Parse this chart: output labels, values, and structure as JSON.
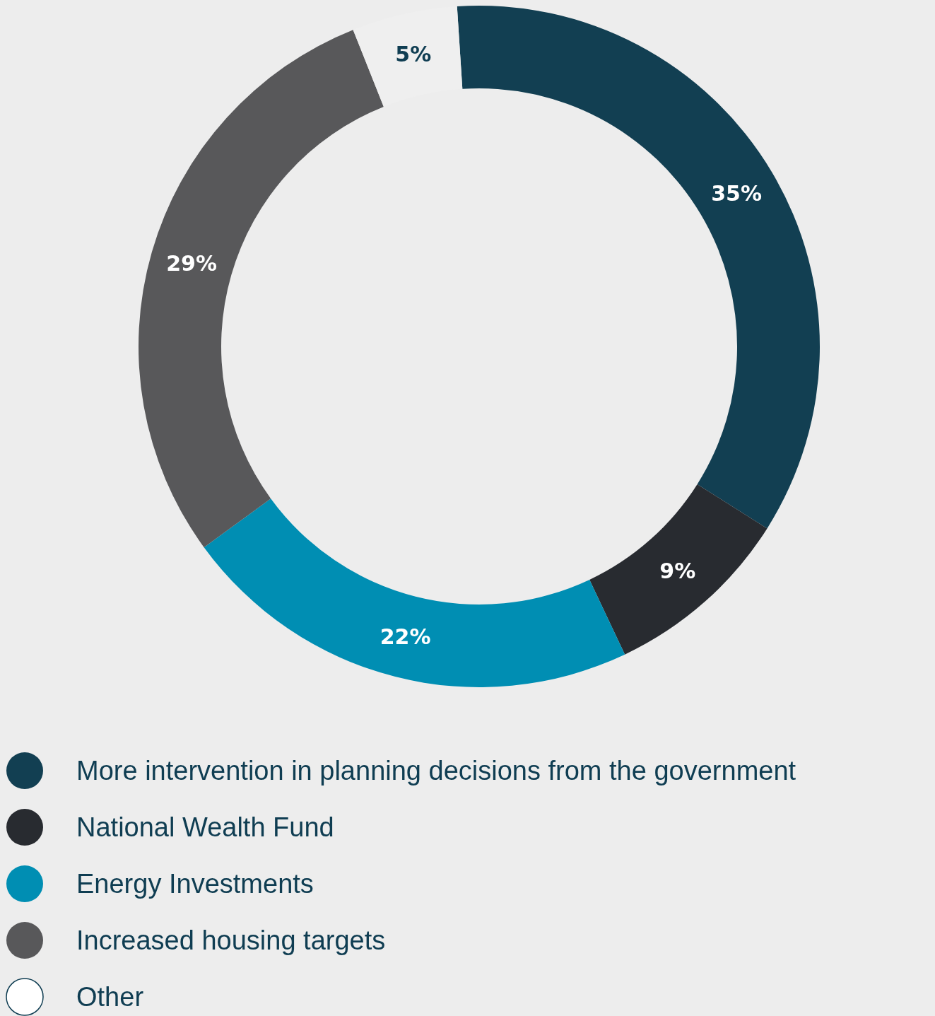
{
  "chart_data": {
    "type": "donut",
    "categories": [
      "More intervention in planning decisions from the government",
      "National Wealth Fund",
      "Energy Investments",
      "Increased housing targets",
      "Other"
    ],
    "values": [
      35,
      9,
      22,
      29,
      5
    ],
    "colors": [
      "#123f52",
      "#282b30",
      "#008eb3",
      "#58585a",
      "#efefef"
    ],
    "value_labels": [
      "35%",
      "9%",
      "22%",
      "29%",
      "5%"
    ],
    "legend": "bottom"
  }
}
